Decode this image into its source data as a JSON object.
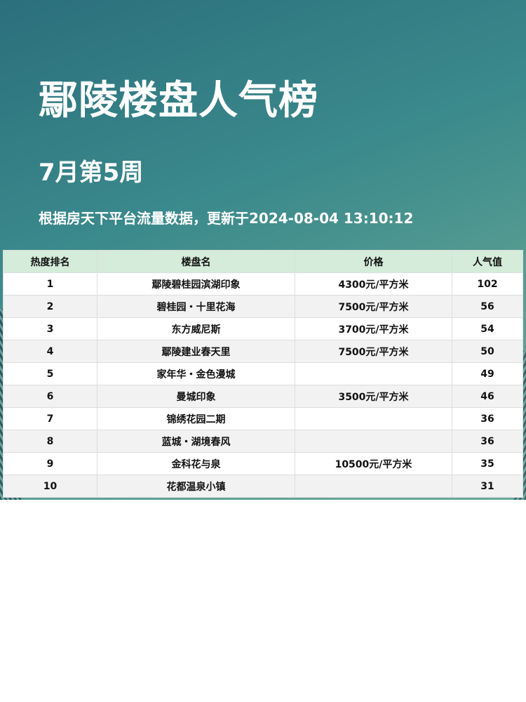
{
  "header": {
    "title": "鄢陵楼盘人气榜",
    "week": "7月第5周",
    "subtitle": "根据房天下平台流量数据，更新于2024-08-04  13:10:12"
  },
  "table": {
    "columns": [
      "热度排名",
      "楼盘名",
      "价格",
      "人气值"
    ],
    "rows": [
      {
        "rank": "1",
        "name": "鄢陵碧桂园滨湖印象",
        "price": "4300元/平方米",
        "pop": "102"
      },
      {
        "rank": "2",
        "name": "碧桂园・十里花海",
        "price": "7500元/平方米",
        "pop": "56"
      },
      {
        "rank": "3",
        "name": "东方威尼斯",
        "price": "3700元/平方米",
        "pop": "54"
      },
      {
        "rank": "4",
        "name": "鄢陵建业春天里",
        "price": "7500元/平方米",
        "pop": "50"
      },
      {
        "rank": "5",
        "name": "家年华・金色漫城",
        "price": "",
        "pop": "49"
      },
      {
        "rank": "6",
        "name": "曼城印象",
        "price": "3500元/平方米",
        "pop": "46"
      },
      {
        "rank": "7",
        "name": "锦绣花园二期",
        "price": "",
        "pop": "36"
      },
      {
        "rank": "8",
        "name": "蓝城・湖境春风",
        "price": "",
        "pop": "36"
      },
      {
        "rank": "9",
        "name": "金科花与泉",
        "price": "10500元/平方米",
        "pop": "35"
      },
      {
        "rank": "10",
        "name": "花都温泉小镇",
        "price": "",
        "pop": "31"
      }
    ]
  },
  "colors": {
    "header_bg": "#d4ecd9",
    "banner": "#3b8a8c"
  }
}
